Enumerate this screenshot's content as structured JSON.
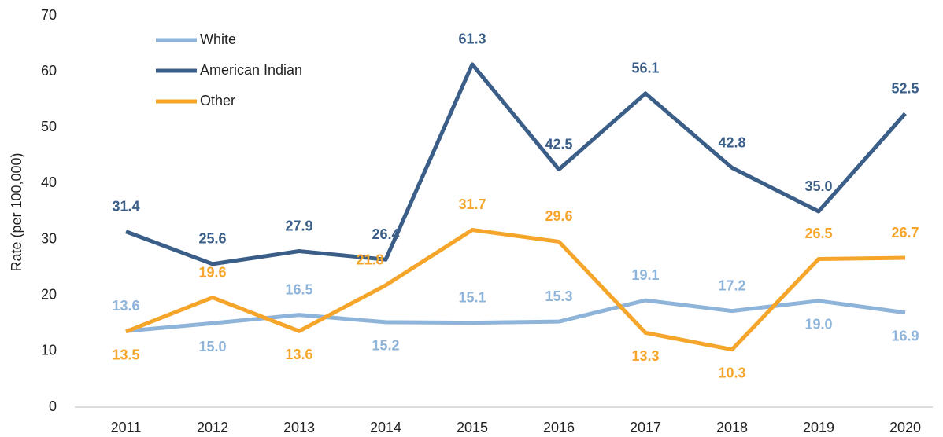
{
  "chart_data": {
    "type": "line",
    "y_label": "Rate (per 100,000)",
    "categories": [
      "2011",
      "2012",
      "2013",
      "2014",
      "2015",
      "2016",
      "2017",
      "2018",
      "2019",
      "2020"
    ],
    "series": [
      {
        "name": "White",
        "color": "#8fb4da",
        "values": [
          13.6,
          15.0,
          16.5,
          15.2,
          15.1,
          15.3,
          19.1,
          17.2,
          19.0,
          16.9
        ],
        "value_labels": [
          "13.6",
          "15.0",
          "16.5",
          "15.2",
          "15.1",
          "15.3",
          "19.1",
          "17.2",
          "19.0",
          "16.9"
        ]
      },
      {
        "name": "American Indian",
        "color": "#3a5e88",
        "values": [
          31.4,
          25.6,
          27.9,
          26.4,
          61.3,
          42.5,
          56.1,
          42.8,
          35.0,
          52.5
        ],
        "value_labels": [
          "31.4",
          "25.6",
          "27.9",
          "26.4",
          "61.3",
          "42.5",
          "56.1",
          "42.8",
          "35.0",
          "52.5"
        ]
      },
      {
        "name": "Other",
        "color": "#f5a52a",
        "values": [
          13.5,
          19.6,
          13.6,
          21.8,
          31.7,
          29.6,
          13.3,
          10.3,
          26.5,
          26.7
        ],
        "value_labels": [
          "13.5",
          "19.6",
          "13.6",
          "21.8",
          "31.7",
          "29.6",
          "13.3",
          "10.3",
          "26.5",
          "26.7"
        ]
      }
    ],
    "ylim": [
      0,
      70
    ],
    "yticks": [
      0,
      10,
      20,
      30,
      40,
      50,
      60,
      70
    ],
    "grid": false,
    "legend": "top-left"
  }
}
